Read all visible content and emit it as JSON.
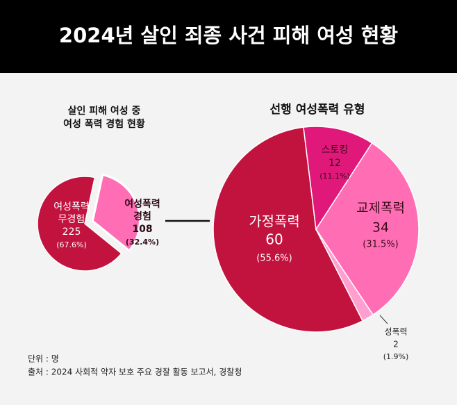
{
  "title": "2024년 살인 죄종 사건 피해 여성 현황",
  "unit": "단위 : 명",
  "source": "출처 : 2024 사회적 약자 보호 주요 경찰 활동 보고서, 경찰청",
  "chart_data": [
    {
      "type": "pie",
      "title": [
        "살인 피해 여성 중",
        "여성 폭력 경험 현황"
      ],
      "categories": [
        [
          "여성폭력",
          "무경험"
        ],
        [
          "여성폭력",
          "경험"
        ]
      ],
      "values": [
        225,
        108
      ],
      "percent_labels": [
        "(67.6%)",
        "(32.4%)"
      ],
      "colors": [
        "#c2133f",
        "#ff6eb4"
      ]
    },
    {
      "type": "pie",
      "title": [
        "선행 여성폭력 유형"
      ],
      "categories": [
        [
          "가정폭력"
        ],
        [
          "스토킹"
        ],
        [
          "교제폭력"
        ],
        [
          "성폭력"
        ]
      ],
      "values": [
        60,
        12,
        34,
        2
      ],
      "percent_labels": [
        "(55.6%)",
        "(11.1%)",
        "(31.5%)",
        "(1.9%)"
      ],
      "colors": [
        "#c2133f",
        "#e0187a",
        "#ff6eb4",
        "#ff9fd0"
      ]
    }
  ]
}
